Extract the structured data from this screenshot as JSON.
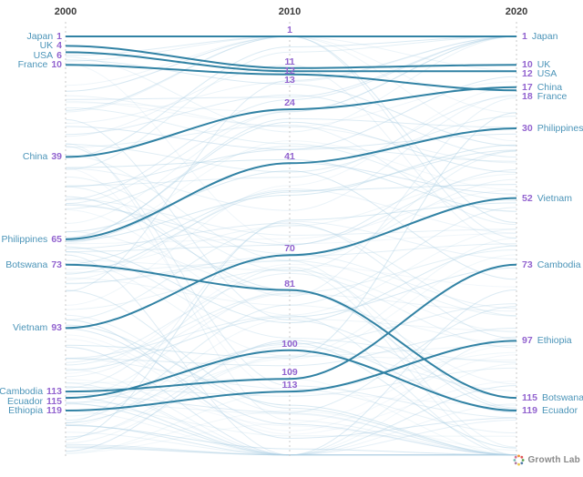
{
  "chart_data": {
    "type": "line",
    "subtype": "bump-ranking",
    "title": "",
    "x": [
      2000,
      2010,
      2020
    ],
    "x_tick_labels": [
      "2000",
      "2010",
      "2020"
    ],
    "series": [
      {
        "name": "Japan",
        "ranks": [
          1,
          1,
          1
        ]
      },
      {
        "name": "UK",
        "ranks": [
          4,
          11,
          10
        ]
      },
      {
        "name": "USA",
        "ranks": [
          6,
          12,
          12
        ]
      },
      {
        "name": "France",
        "ranks": [
          10,
          13,
          18
        ]
      },
      {
        "name": "China",
        "ranks": [
          39,
          24,
          17
        ]
      },
      {
        "name": "Philippines",
        "ranks": [
          65,
          41,
          30
        ]
      },
      {
        "name": "Botswana",
        "ranks": [
          73,
          81,
          115
        ]
      },
      {
        "name": "Vietnam",
        "ranks": [
          93,
          70,
          52
        ]
      },
      {
        "name": "Cambodia",
        "ranks": [
          113,
          109,
          73
        ]
      },
      {
        "name": "Ecuador",
        "ranks": [
          115,
          100,
          119
        ]
      },
      {
        "name": "Ethiopia",
        "ranks": [
          119,
          113,
          97
        ]
      }
    ],
    "rank_domain": [
      1,
      133
    ],
    "y_inverted": true,
    "axis_style": "dashed-vertical",
    "grid": false,
    "legend": "none",
    "background_lines": {
      "count": 122,
      "seed": 9
    },
    "colors": {
      "highlight_line": "#3182a4",
      "country_name_text": "#4b94b8",
      "rank_number_text": "#9263cf",
      "year_text": "#3a3a3a",
      "background_line": "#aed0e4",
      "axis_dash": "#c9c9c9",
      "logo_text": "#8a8a8a",
      "logo_dots": [
        "#f28e2b",
        "#e15759",
        "#59a14f",
        "#4e79a7",
        "#edc948",
        "#b07aa1",
        "#76b7b2",
        "#d37295"
      ]
    }
  },
  "logo": {
    "text": "Growth Lab"
  }
}
